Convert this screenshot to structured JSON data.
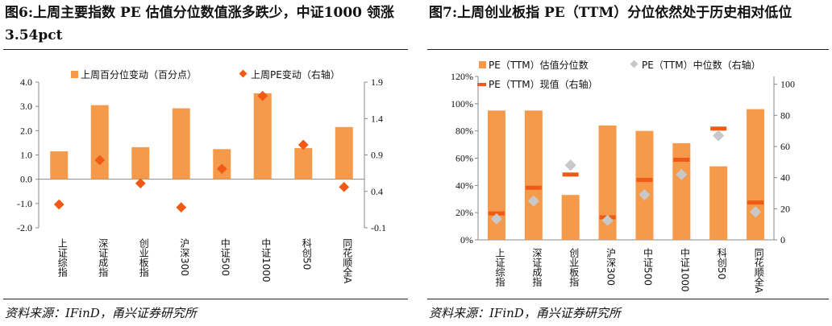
{
  "left": {
    "title": "图6:上周主要指数 PE 估值分位数值涨多跌少，中证1000 领涨 3.54pct",
    "source": "资料来源：IFinD，甬兴证券研究所",
    "colors": {
      "bar": "#F59A4A",
      "marker": "#F05A14"
    }
  },
  "right": {
    "title": "图7:上周创业板指 PE（TTM）分位依然处于历史相对低位",
    "source": "资料来源：IFinD，甬兴证券研究所",
    "colors": {
      "bar": "#F59A4A",
      "median": "#C8C8C8",
      "current": "#F05A14"
    }
  },
  "chart_data": [
    {
      "type": "bar",
      "categories": [
        "上证综指",
        "深证成指",
        "创业板指",
        "沪深300",
        "中证500",
        "中证1000",
        "科创50",
        "同花顺全A"
      ],
      "series": [
        {
          "name": "上周百分位变动（百分点）",
          "type": "bar",
          "axis": "left",
          "values": [
            1.15,
            3.05,
            1.32,
            2.92,
            1.24,
            3.54,
            1.28,
            2.15
          ]
        },
        {
          "name": "上周PE变动（右轴）",
          "type": "scatter",
          "axis": "right",
          "values": [
            0.22,
            0.83,
            0.51,
            0.18,
            0.71,
            1.71,
            1.04,
            0.46
          ]
        }
      ],
      "ylim": [
        -2.0,
        4.0
      ],
      "yticks": [
        "4.0",
        "3.0",
        "2.0",
        "1.0",
        "0.0",
        "-1.0",
        "-2.0"
      ],
      "y2lim": [
        -0.1,
        1.9
      ],
      "y2ticks": [
        "1.9",
        "1.4",
        "0.9",
        "0.4",
        "-0.1"
      ],
      "legend": "top"
    },
    {
      "type": "bar",
      "categories": [
        "上证综指",
        "深证成指",
        "创业板指",
        "沪深300",
        "中证500",
        "中证1000",
        "科创50",
        "同花顺全A"
      ],
      "series": [
        {
          "name": "PE（TTM）估值分位数",
          "type": "bar",
          "axis": "left",
          "values": [
            0.95,
            0.95,
            0.33,
            0.84,
            0.8,
            0.71,
            0.54,
            0.96
          ]
        },
        {
          "name": "PE（TTM）中位数（右轴）",
          "type": "scatter",
          "axis": "right",
          "values": [
            13.5,
            25,
            48,
            12.5,
            29,
            42,
            67,
            18
          ]
        },
        {
          "name": "PE（TTM）现值（右轴）",
          "type": "dash",
          "axis": "right",
          "values": [
            17,
            33.5,
            42,
            14.5,
            38.5,
            51.5,
            71.5,
            24
          ]
        }
      ],
      "ylim": [
        0,
        1.2
      ],
      "yticks": [
        "120%",
        "100%",
        "80%",
        "60%",
        "40%",
        "20%",
        "0%"
      ],
      "y2lim": [
        0,
        105
      ],
      "y2ticks": [
        "100",
        "80",
        "60",
        "40",
        "20",
        "0"
      ],
      "legend": "top"
    }
  ]
}
